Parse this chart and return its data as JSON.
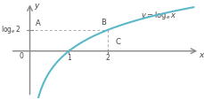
{
  "curve_color": "#5ab8c8",
  "curve_linewidth": 1.5,
  "axis_color": "#888888",
  "dashed_color": "#aaaaaa",
  "text_color": "#444444",
  "x_data_min": 0.08,
  "x_data_max": 4.2,
  "y_data_min": -1.5,
  "y_data_max": 1.45,
  "xlim": [
    -0.55,
    4.4
  ],
  "ylim": [
    -1.55,
    1.65
  ],
  "point_B_x": 2.0,
  "log_e_2": 0.6931,
  "fig_width": 2.29,
  "fig_height": 1.12,
  "dpi": 100,
  "label_equation": "y = log_e x",
  "label_loge2": "log_e 2",
  "label_A": "A",
  "label_B": "B",
  "label_C": "C",
  "label_x": "x",
  "label_y": "y",
  "label_0": "0",
  "label_1": "1",
  "label_2": "2",
  "eq_x": 2.85,
  "eq_y": 1.35,
  "arrow_color": "#888888"
}
